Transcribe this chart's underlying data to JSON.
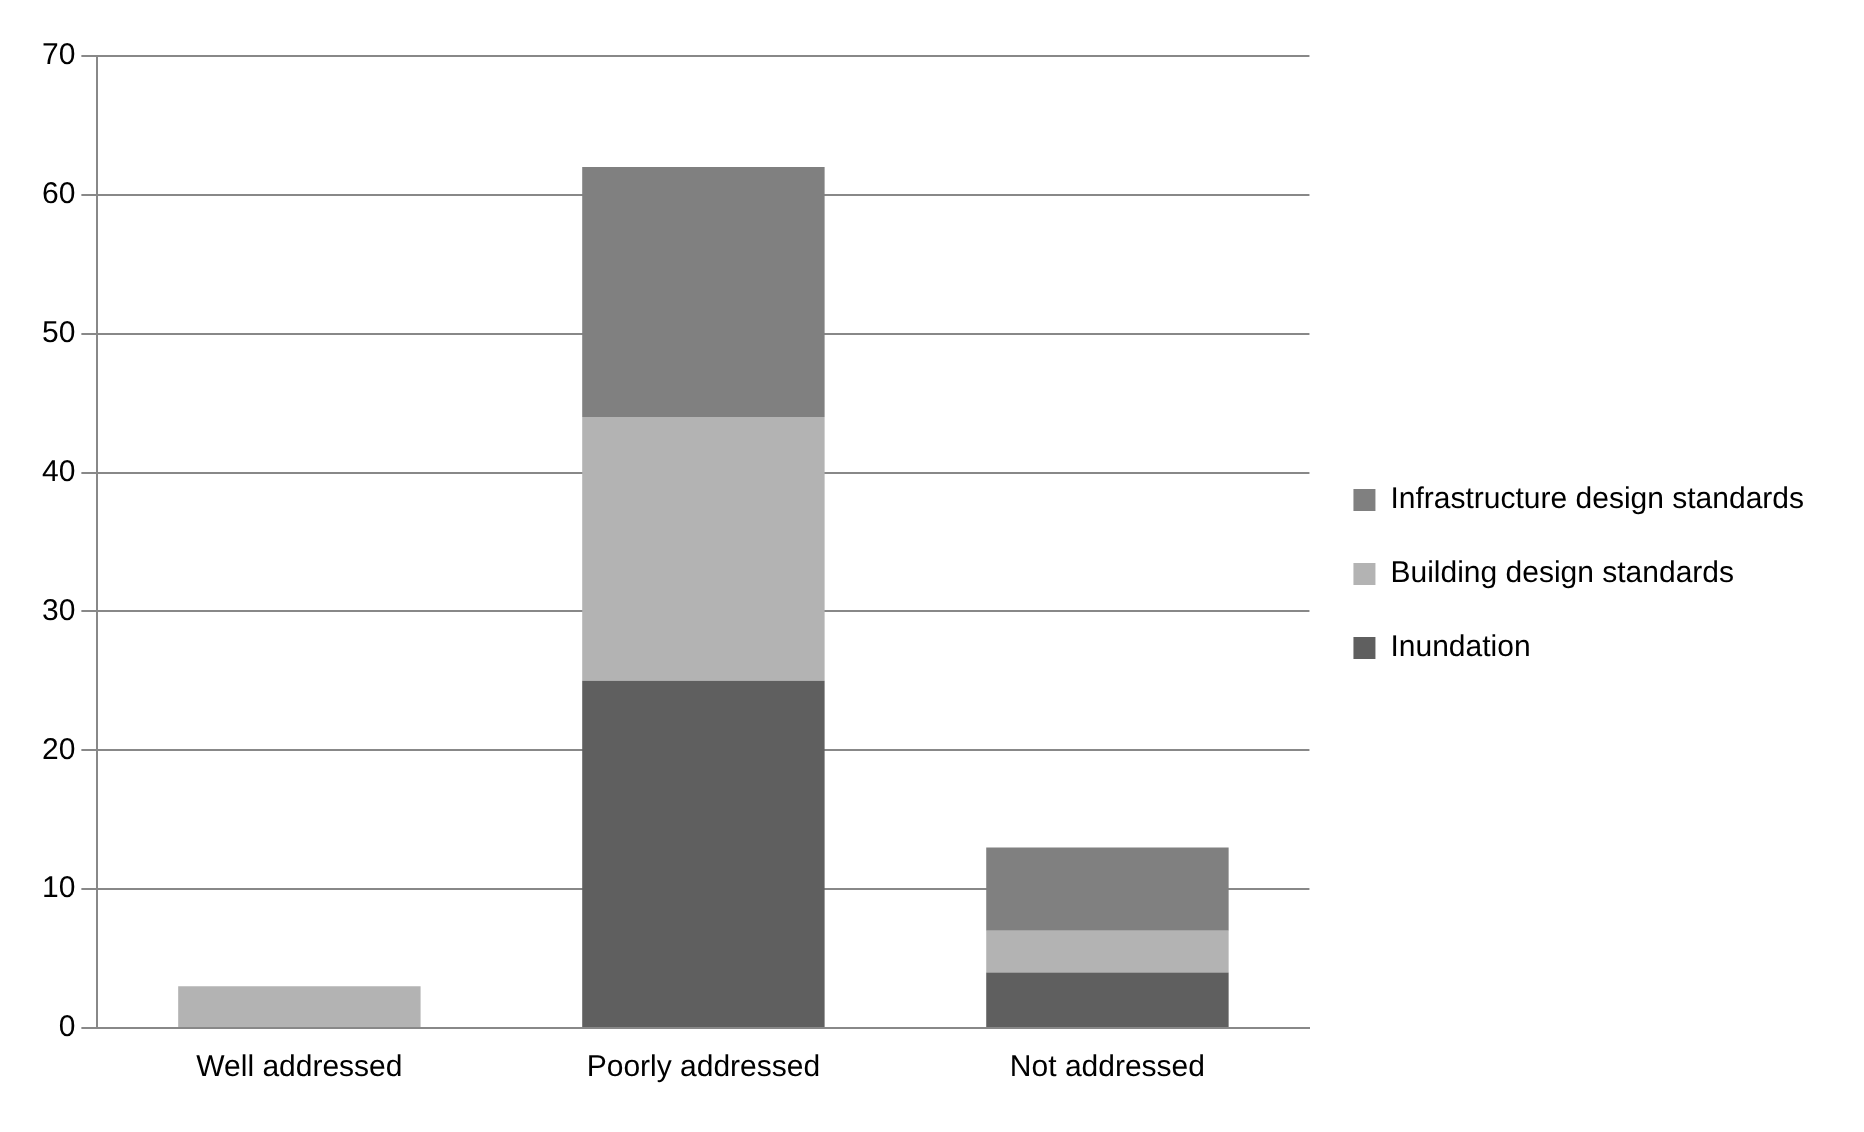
{
  "chart_data": {
    "type": "bar",
    "stacked": true,
    "categories": [
      "Well addressed",
      "Poorly addressed",
      "Not addressed"
    ],
    "series": [
      {
        "name": "Inundation",
        "color": "#5f5f5f",
        "values": [
          null,
          25,
          4
        ]
      },
      {
        "name": "Building design standards",
        "color": "#b3b3b3",
        "values": [
          3,
          19,
          3
        ]
      },
      {
        "name": "Infrastructure design standards",
        "color": "#808080",
        "values": [
          null,
          18,
          6
        ]
      }
    ],
    "ylim": [
      0,
      70
    ],
    "yticks": [
      0,
      10,
      20,
      30,
      40,
      50,
      60,
      70
    ],
    "grid": "y",
    "legend": "right"
  }
}
